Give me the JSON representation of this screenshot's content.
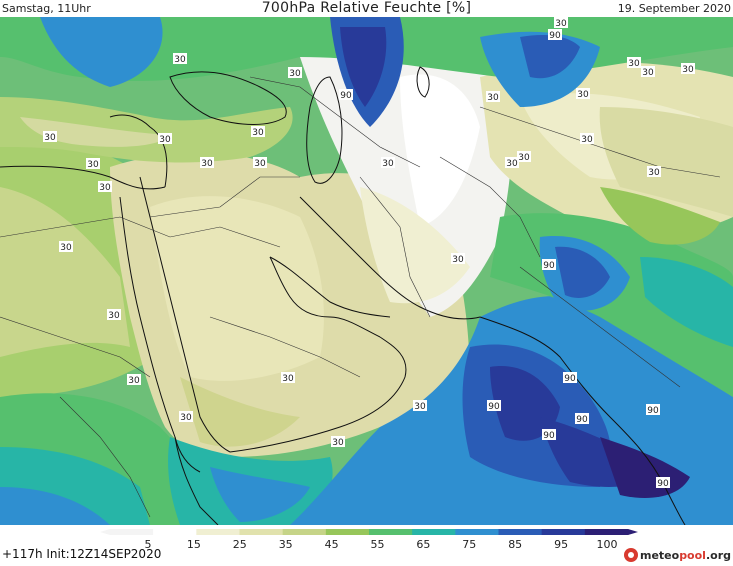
{
  "header": {
    "left": "Samstag, 11Uhr",
    "center": "700hPa Relative Feuchte [%]",
    "right": "19. September 2020"
  },
  "footer": {
    "run_info": "+117h  Init:12Z14SEP2020",
    "logo_prefix": "meteo",
    "logo_accent": "pool",
    "logo_suffix": ".org"
  },
  "legend": {
    "ticks": [
      "5",
      "15",
      "25",
      "35",
      "45",
      "55",
      "65",
      "75",
      "85",
      "95",
      "100"
    ],
    "colors": [
      "#f4f4f4",
      "#ffffff",
      "#f0efd2",
      "#e1e2ad",
      "#c6d488",
      "#97c65a",
      "#56c06e",
      "#27b5a7",
      "#2f8fd0",
      "#2a5cb6",
      "#283a99",
      "#2c1f74"
    ]
  },
  "map_labels": [
    {
      "text": "30",
      "id": "c30"
    },
    {
      "text": "90",
      "id": "c90"
    }
  ]
}
